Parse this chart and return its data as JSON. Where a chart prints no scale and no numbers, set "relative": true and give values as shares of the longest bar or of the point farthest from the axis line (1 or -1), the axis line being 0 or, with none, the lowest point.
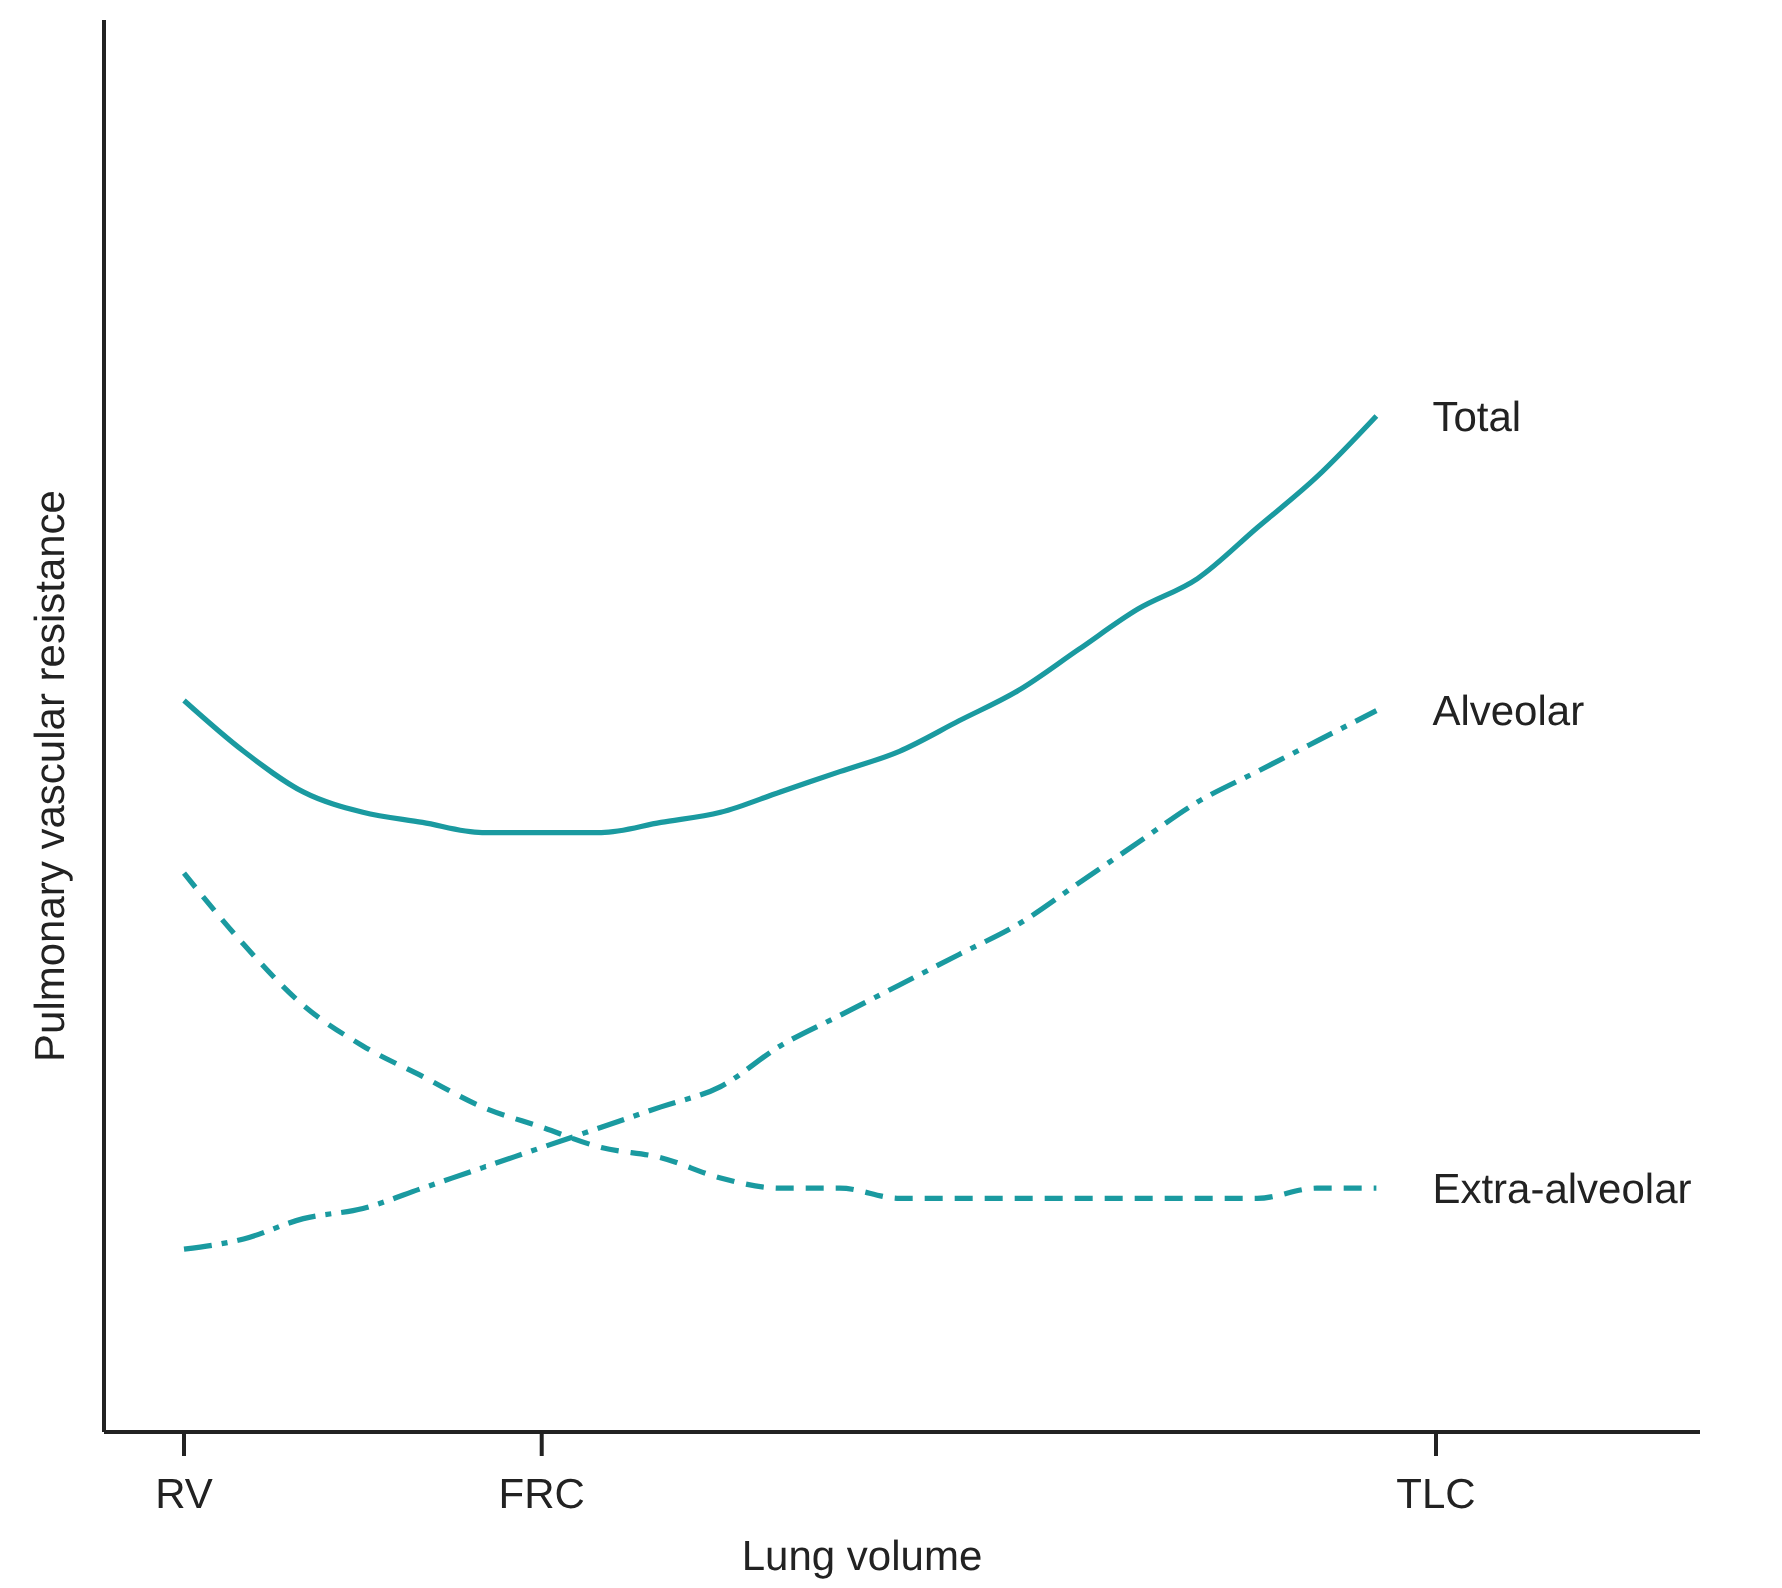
{
  "chart_data": {
    "type": "line",
    "relative": true,
    "xlabel": "Lung volume",
    "ylabel": "Pulmonary vascular resistance",
    "categories": [
      "RV",
      null,
      null,
      null,
      null,
      null,
      "FRC",
      null,
      null,
      null,
      null,
      null,
      null,
      null,
      null,
      null,
      null,
      null,
      null,
      null,
      null,
      "TLC"
    ],
    "marker": "none",
    "series": [
      {
        "name": "Total",
        "color": "#1a9aa0",
        "line_style": "solid",
        "values": [
          0.72,
          0.67,
          0.63,
          0.61,
          0.6,
          0.59,
          0.59,
          0.59,
          0.6,
          0.61,
          0.63,
          0.65,
          0.67,
          0.7,
          0.73,
          0.77,
          0.81,
          0.84,
          0.89,
          0.94,
          1.0,
          null
        ]
      },
      {
        "name": "Alveolar",
        "color": "#1a9aa0",
        "line_style": "dashdot",
        "values": [
          0.18,
          0.19,
          0.21,
          0.22,
          0.24,
          0.26,
          0.28,
          0.3,
          0.32,
          0.34,
          0.38,
          0.41,
          0.44,
          0.47,
          0.5,
          0.54,
          0.58,
          0.62,
          0.65,
          0.68,
          0.71,
          null
        ]
      },
      {
        "name": "Extra-alveolar",
        "color": "#1a9aa0",
        "line_style": "dashed",
        "values": [
          0.55,
          0.48,
          0.42,
          0.38,
          0.35,
          0.32,
          0.3,
          0.28,
          0.27,
          0.25,
          0.24,
          0.24,
          0.23,
          0.23,
          0.23,
          0.23,
          0.23,
          0.23,
          0.23,
          0.24,
          0.24,
          null
        ]
      }
    ]
  }
}
